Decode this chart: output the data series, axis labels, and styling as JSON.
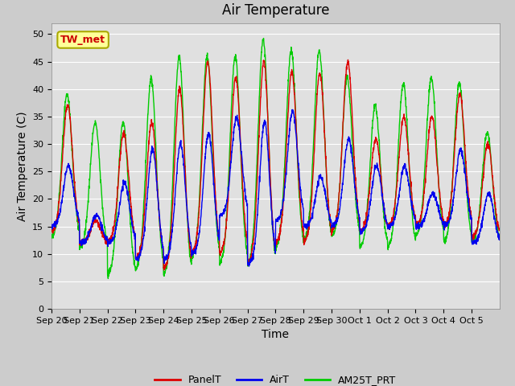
{
  "title": "Air Temperature",
  "ylabel": "Air Temperature (C)",
  "xlabel": "Time",
  "annotation": "TW_met",
  "annotation_color": "#cc0000",
  "annotation_bg": "#ffff99",
  "annotation_edge": "#aaaa00",
  "ylim": [
    0,
    52
  ],
  "yticks": [
    0,
    5,
    10,
    15,
    20,
    25,
    30,
    35,
    40,
    45,
    50
  ],
  "x_tick_labels": [
    "Sep 20",
    "Sep 21",
    "Sep 22",
    "Sep 23",
    "Sep 24",
    "Sep 25",
    "Sep 26",
    "Sep 27",
    "Sep 28",
    "Sep 29",
    "Sep 30",
    "Oct 1",
    "Oct 2",
    "Oct 3",
    "Oct 4",
    "Oct 5"
  ],
  "x_tick_positions": [
    0,
    1,
    2,
    3,
    4,
    5,
    6,
    7,
    8,
    9,
    10,
    11,
    12,
    13,
    14,
    15
  ],
  "bg_color": "#cccccc",
  "plot_bg_color": "#e0e0e0",
  "line_colors": [
    "#dd0000",
    "#0000ee",
    "#00cc00"
  ],
  "line_labels": [
    "PanelT",
    "AirT",
    "AM25T_PRT"
  ],
  "num_days": 16,
  "samples_per_day": 144,
  "panel_peaks": [
    37,
    16,
    32,
    34,
    40,
    45,
    42,
    45,
    43,
    43,
    45,
    31,
    35,
    35,
    39,
    30
  ],
  "air_peaks": [
    26,
    17,
    23,
    29,
    30,
    32,
    35,
    34,
    36,
    24,
    31,
    26,
    26,
    21,
    29,
    21
  ],
  "am25_peaks": [
    39,
    34,
    34,
    42,
    46,
    46,
    46,
    49,
    47,
    47,
    42,
    37,
    41,
    42,
    41,
    32
  ],
  "panel_mins": [
    14,
    12,
    12,
    9,
    7,
    10,
    10,
    8,
    12,
    12,
    14,
    14,
    15,
    15,
    15,
    13
  ],
  "air_mins": [
    15,
    12,
    12,
    9,
    9,
    10,
    17,
    8,
    16,
    15,
    15,
    14,
    15,
    15,
    15,
    12
  ],
  "am25_mins": [
    13,
    11,
    6,
    7,
    6,
    9,
    8,
    8,
    11,
    12,
    13,
    11,
    11,
    13,
    12,
    12
  ],
  "grid_color": "#ffffff",
  "title_fontsize": 12,
  "axis_label_fontsize": 10,
  "tick_fontsize": 8,
  "line_width": 1.0
}
